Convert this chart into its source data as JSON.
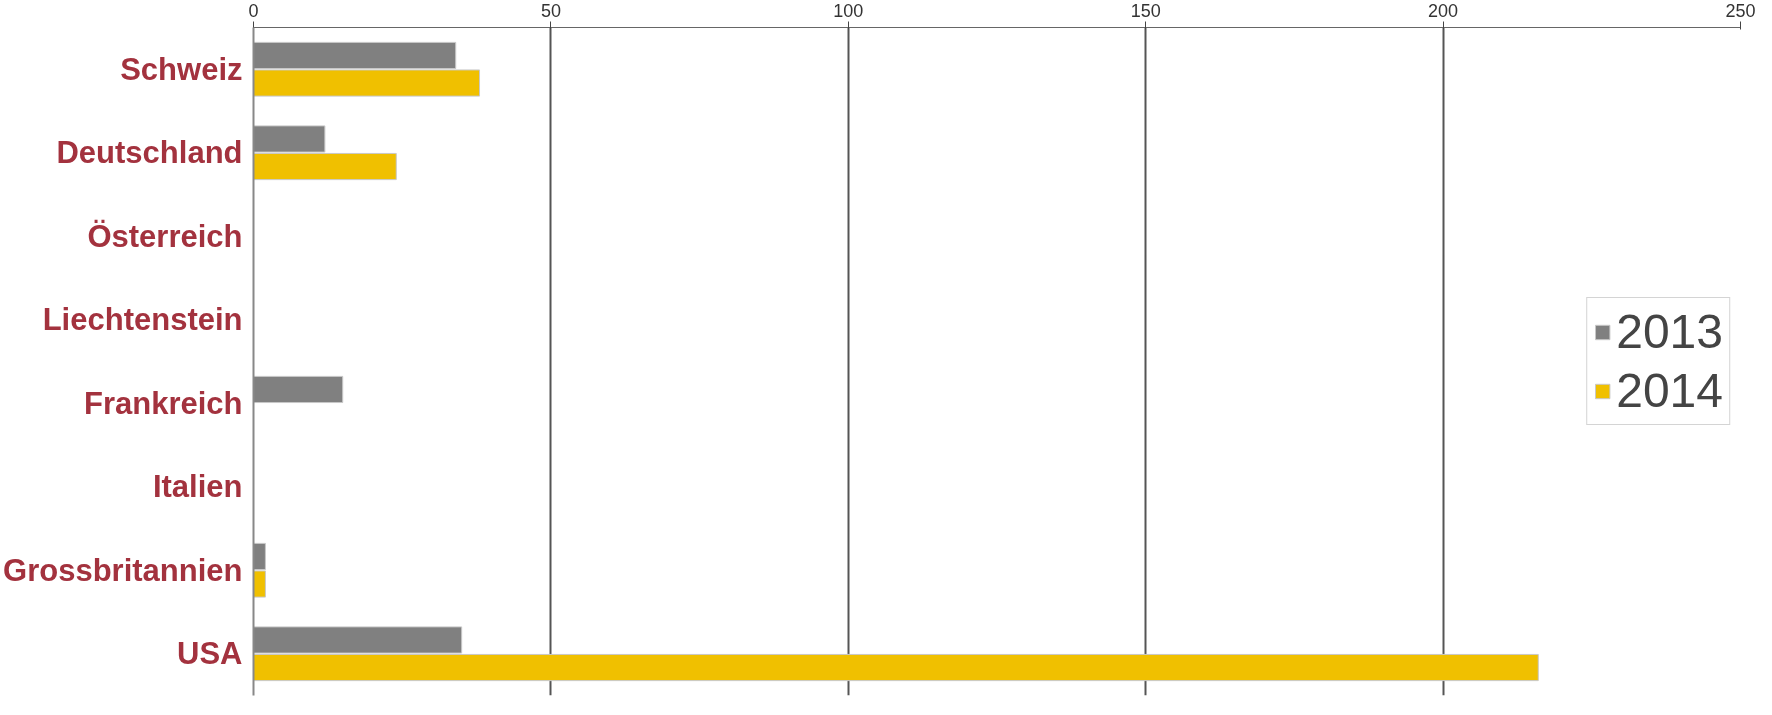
{
  "chart_data": {
    "type": "bar",
    "orientation": "horizontal",
    "categories": [
      "Schweiz",
      "Deutschland",
      "Österreich",
      "Liechtenstein",
      "Frankreich",
      "Italien",
      "Grossbritannien",
      "USA"
    ],
    "series": [
      {
        "name": "2013",
        "color": "#808080",
        "values": [
          34,
          12,
          null,
          null,
          15,
          null,
          2,
          35
        ]
      },
      {
        "name": "2014",
        "color": "#f0c000",
        "values": [
          38,
          24,
          null,
          null,
          null,
          null,
          2,
          216
        ]
      }
    ],
    "xlim": [
      0,
      250
    ],
    "xticks": [
      0,
      50,
      100,
      150,
      200,
      250
    ],
    "grid": "x",
    "legend": "right"
  }
}
